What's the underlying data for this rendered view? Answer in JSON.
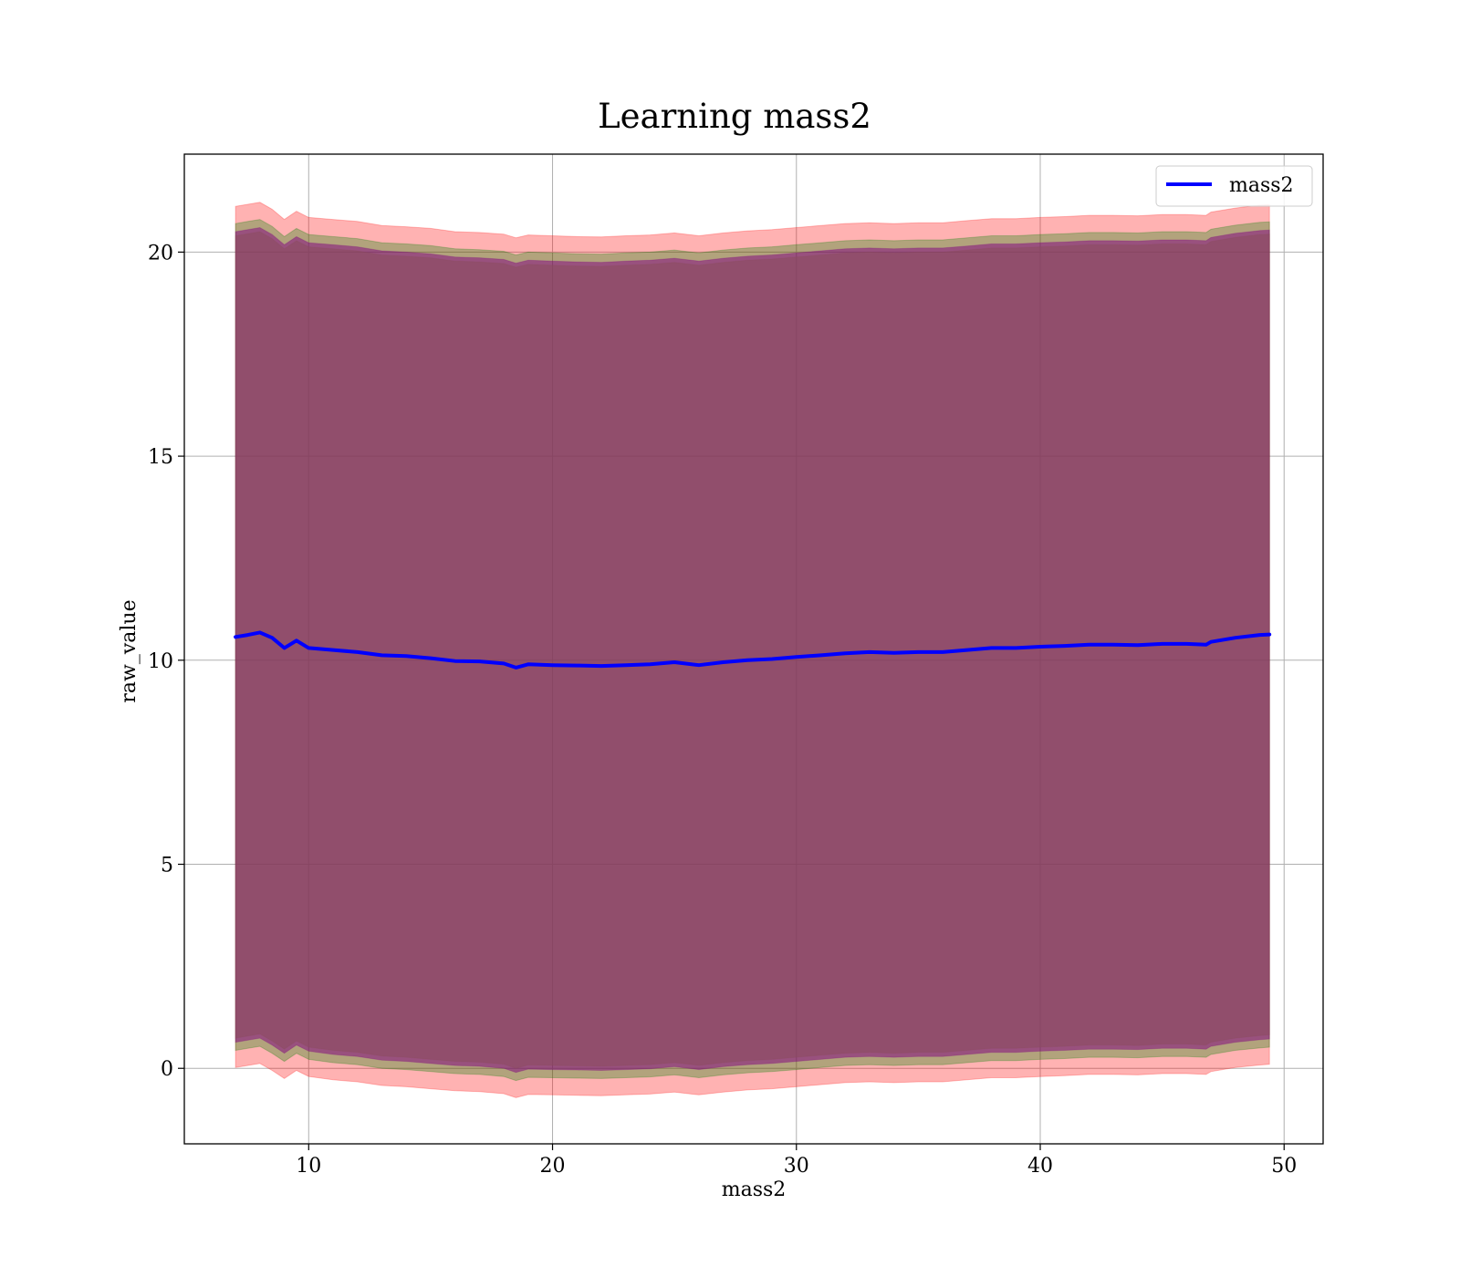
{
  "chart_data": {
    "type": "area",
    "title": "Learning mass2",
    "xlabel": "mass2",
    "ylabel": "raw_value",
    "xlim": [
      4.9,
      51.6
    ],
    "ylim": [
      -1.85,
      22.4
    ],
    "xticks": [
      10,
      20,
      30,
      40,
      50
    ],
    "yticks": [
      0,
      5,
      10,
      15,
      20
    ],
    "grid": true,
    "legend": {
      "placement": "top-right",
      "entries": [
        "mass2"
      ]
    },
    "x": [
      7.0,
      7.5,
      8.0,
      8.5,
      9.0,
      9.5,
      10.0,
      11.0,
      12.0,
      13.0,
      14.0,
      15.0,
      16.0,
      17.0,
      18.0,
      18.5,
      19.0,
      20.0,
      21.0,
      22.0,
      23.0,
      24.0,
      25.0,
      26.0,
      27.0,
      28.0,
      29.0,
      30.0,
      31.0,
      32.0,
      33.0,
      34.0,
      35.0,
      36.0,
      37.0,
      38.0,
      39.0,
      40.0,
      41.0,
      42.0,
      43.0,
      44.0,
      45.0,
      46.0,
      46.8,
      47.0,
      48.0,
      49.0,
      49.4
    ],
    "series": [
      {
        "name": "mass2",
        "role": "mean",
        "color": "#0000ff",
        "values": [
          10.57,
          10.62,
          10.68,
          10.55,
          10.3,
          10.48,
          10.3,
          10.25,
          10.2,
          10.12,
          10.1,
          10.05,
          9.98,
          9.97,
          9.92,
          9.82,
          9.9,
          9.88,
          9.87,
          9.86,
          9.88,
          9.9,
          9.95,
          9.88,
          9.95,
          10.0,
          10.03,
          10.08,
          10.12,
          10.17,
          10.2,
          10.18,
          10.2,
          10.2,
          10.25,
          10.3,
          10.3,
          10.33,
          10.35,
          10.38,
          10.38,
          10.37,
          10.4,
          10.4,
          10.38,
          10.45,
          10.55,
          10.62,
          10.63
        ]
      }
    ],
    "bands": [
      {
        "color": "#ff0000",
        "opacity": 0.3,
        "upper": [
          21.12,
          21.17,
          21.22,
          21.05,
          20.8,
          21.0,
          20.85,
          20.8,
          20.75,
          20.65,
          20.62,
          20.58,
          20.5,
          20.48,
          20.44,
          20.35,
          20.42,
          20.4,
          20.38,
          20.37,
          20.4,
          20.42,
          20.47,
          20.4,
          20.47,
          20.52,
          20.55,
          20.6,
          20.65,
          20.7,
          20.72,
          20.7,
          20.72,
          20.72,
          20.77,
          20.82,
          20.82,
          20.85,
          20.87,
          20.9,
          20.9,
          20.89,
          20.92,
          20.92,
          20.9,
          20.98,
          21.08,
          21.15,
          21.16
        ],
        "lower": [
          0.02,
          0.07,
          0.12,
          -0.05,
          -0.25,
          -0.05,
          -0.2,
          -0.28,
          -0.33,
          -0.42,
          -0.45,
          -0.5,
          -0.55,
          -0.57,
          -0.62,
          -0.72,
          -0.64,
          -0.65,
          -0.66,
          -0.67,
          -0.65,
          -0.63,
          -0.58,
          -0.65,
          -0.58,
          -0.53,
          -0.5,
          -0.45,
          -0.4,
          -0.35,
          -0.33,
          -0.35,
          -0.33,
          -0.33,
          -0.28,
          -0.23,
          -0.23,
          -0.2,
          -0.18,
          -0.15,
          -0.15,
          -0.16,
          -0.13,
          -0.13,
          -0.15,
          -0.08,
          0.02,
          0.08,
          0.1
        ]
      },
      {
        "color": "#008000",
        "opacity": 0.3,
        "upper": [
          20.7,
          20.75,
          20.8,
          20.63,
          20.38,
          20.58,
          20.43,
          20.38,
          20.33,
          20.23,
          20.2,
          20.16,
          20.08,
          20.06,
          20.02,
          19.93,
          20.0,
          19.98,
          19.96,
          19.95,
          19.98,
          20.0,
          20.05,
          19.98,
          20.05,
          20.1,
          20.13,
          20.18,
          20.23,
          20.28,
          20.3,
          20.28,
          20.3,
          20.3,
          20.35,
          20.4,
          20.4,
          20.43,
          20.45,
          20.48,
          20.48,
          20.47,
          20.5,
          20.5,
          20.48,
          20.56,
          20.66,
          20.73,
          20.74
        ],
        "lower": [
          0.44,
          0.49,
          0.54,
          0.37,
          0.17,
          0.37,
          0.22,
          0.14,
          0.09,
          0.0,
          -0.03,
          -0.08,
          -0.13,
          -0.15,
          -0.2,
          -0.3,
          -0.22,
          -0.23,
          -0.24,
          -0.25,
          -0.23,
          -0.21,
          -0.16,
          -0.23,
          -0.16,
          -0.11,
          -0.08,
          -0.03,
          0.02,
          0.07,
          0.09,
          0.07,
          0.09,
          0.09,
          0.14,
          0.19,
          0.19,
          0.22,
          0.24,
          0.27,
          0.27,
          0.26,
          0.29,
          0.29,
          0.27,
          0.34,
          0.44,
          0.5,
          0.52
        ]
      },
      {
        "color": "#800080",
        "opacity": 0.5,
        "upper": [
          20.5,
          20.55,
          20.6,
          20.43,
          20.18,
          20.38,
          20.23,
          20.18,
          20.13,
          20.03,
          20.0,
          19.96,
          19.88,
          19.86,
          19.82,
          19.73,
          19.8,
          19.78,
          19.76,
          19.75,
          19.78,
          19.8,
          19.85,
          19.78,
          19.85,
          19.9,
          19.93,
          19.98,
          20.03,
          20.08,
          20.1,
          20.08,
          20.1,
          20.1,
          20.15,
          20.2,
          20.2,
          20.23,
          20.25,
          20.28,
          20.28,
          20.27,
          20.3,
          20.3,
          20.28,
          20.36,
          20.46,
          20.53,
          20.54
        ],
        "lower": [
          0.64,
          0.69,
          0.74,
          0.57,
          0.37,
          0.57,
          0.42,
          0.34,
          0.29,
          0.2,
          0.17,
          0.12,
          0.07,
          0.05,
          0.0,
          -0.1,
          -0.02,
          -0.03,
          -0.04,
          -0.05,
          -0.03,
          -0.01,
          0.04,
          -0.03,
          0.04,
          0.09,
          0.12,
          0.17,
          0.22,
          0.27,
          0.29,
          0.27,
          0.29,
          0.29,
          0.34,
          0.39,
          0.39,
          0.42,
          0.44,
          0.47,
          0.47,
          0.46,
          0.49,
          0.49,
          0.47,
          0.54,
          0.64,
          0.7,
          0.72
        ]
      },
      {
        "color": "#8b4c5c",
        "opacity": 0.55,
        "upper": [
          20.4,
          20.45,
          20.5,
          20.33,
          20.08,
          20.28,
          20.13,
          20.08,
          20.03,
          19.93,
          19.9,
          19.86,
          19.78,
          19.76,
          19.72,
          19.63,
          19.7,
          19.68,
          19.66,
          19.65,
          19.68,
          19.7,
          19.75,
          19.68,
          19.75,
          19.8,
          19.83,
          19.88,
          19.93,
          19.98,
          20.0,
          19.98,
          20.0,
          20.0,
          20.05,
          20.1,
          20.1,
          20.13,
          20.15,
          20.18,
          20.18,
          20.17,
          20.2,
          20.2,
          20.18,
          20.26,
          20.36,
          20.43,
          20.44
        ],
        "lower": [
          0.74,
          0.79,
          0.84,
          0.67,
          0.47,
          0.67,
          0.52,
          0.44,
          0.39,
          0.3,
          0.27,
          0.22,
          0.17,
          0.15,
          0.1,
          0.0,
          0.08,
          0.07,
          0.06,
          0.05,
          0.07,
          0.09,
          0.14,
          0.07,
          0.14,
          0.19,
          0.22,
          0.27,
          0.32,
          0.37,
          0.39,
          0.37,
          0.39,
          0.39,
          0.44,
          0.49,
          0.49,
          0.52,
          0.54,
          0.57,
          0.57,
          0.56,
          0.59,
          0.59,
          0.57,
          0.64,
          0.74,
          0.8,
          0.82
        ]
      }
    ]
  }
}
